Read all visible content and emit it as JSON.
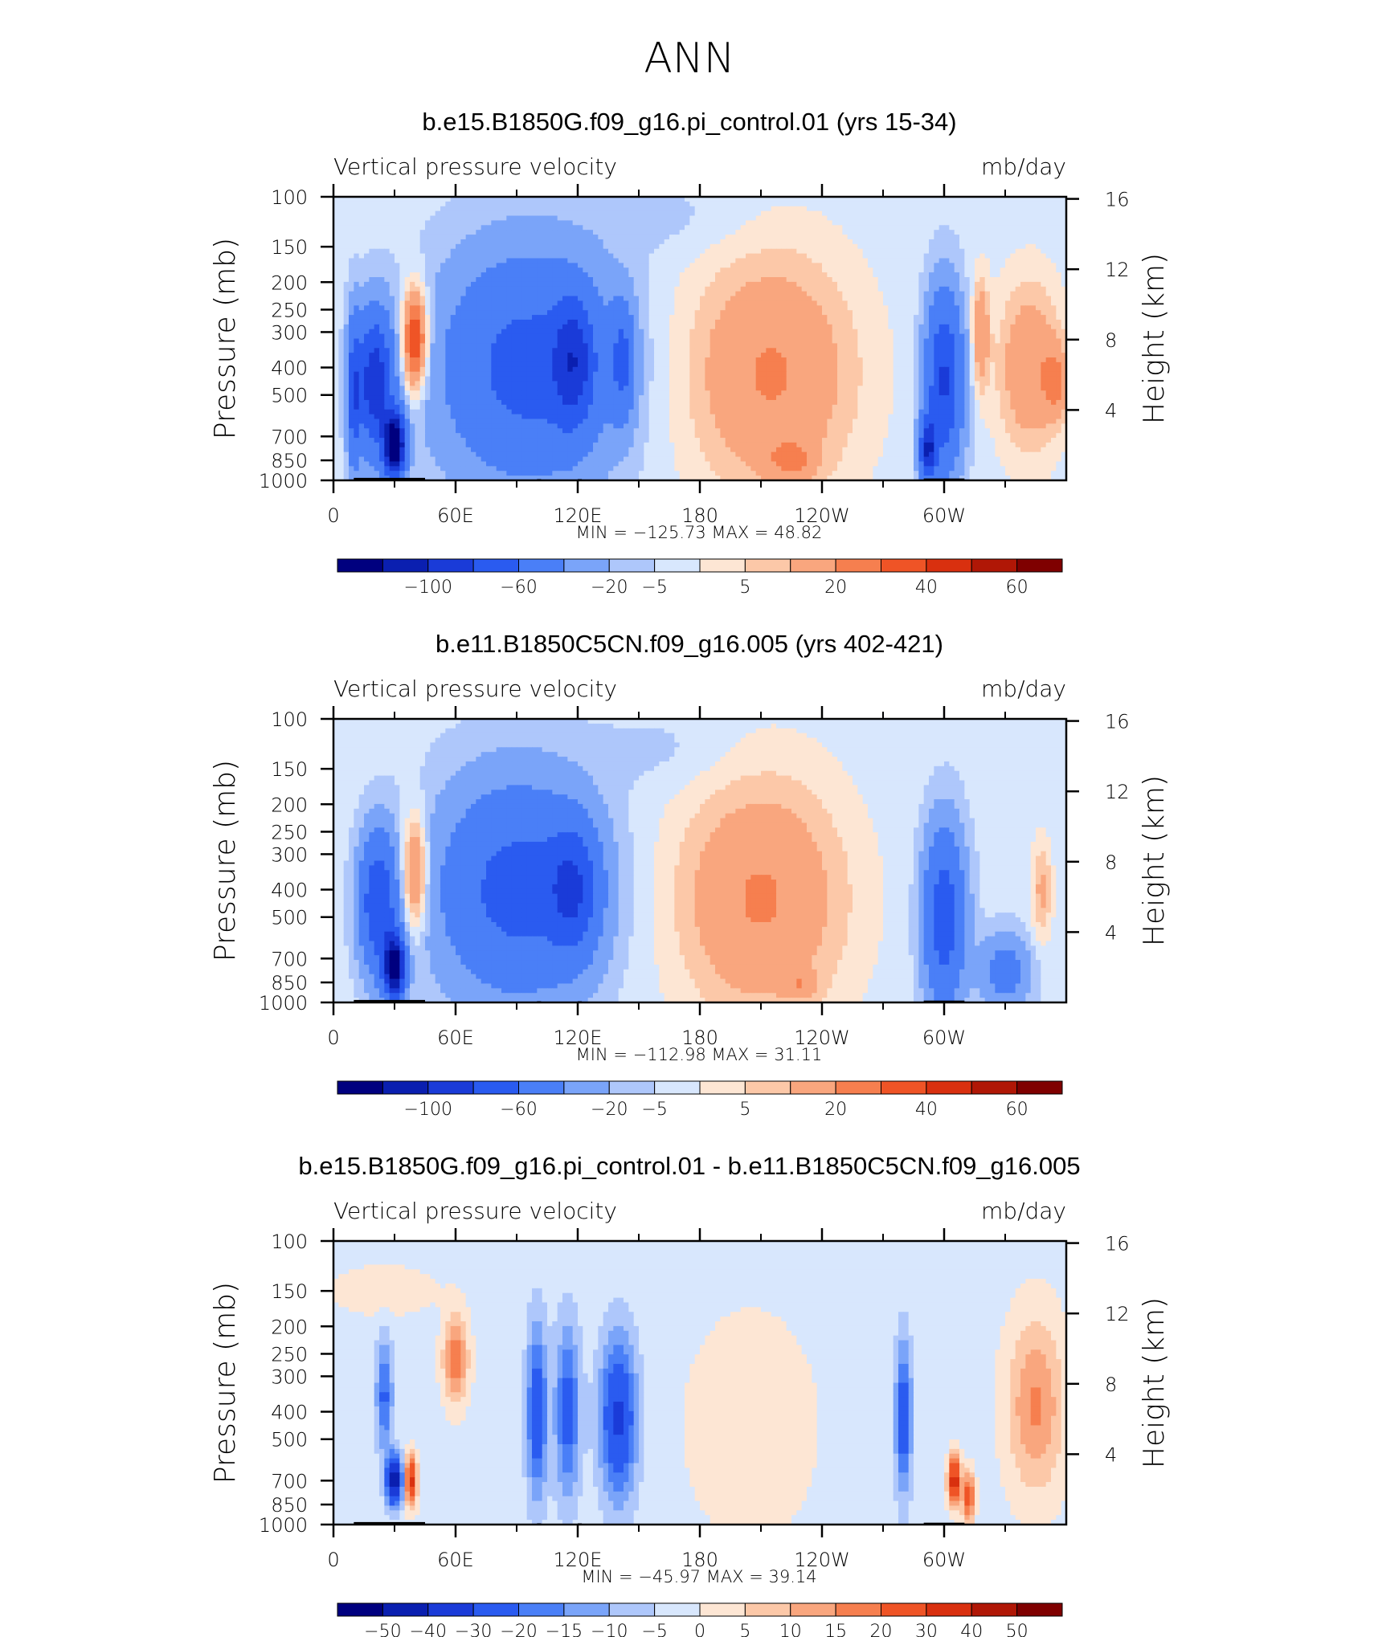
{
  "figure": {
    "title": "ANN"
  },
  "chart_data": [
    {
      "type": "heatmap",
      "title": "b.e15.B1850G.f09_g16.pi_control.01 (yrs 15-34)",
      "left_label": "Vertical pressure velocity",
      "right_label": "mb/day",
      "ylabel": "Pressure (mb)",
      "y2label": "Height (km)",
      "x_ticks": [
        "0",
        "60E",
        "120E",
        "180",
        "120W",
        "60W"
      ],
      "y_ticks": [
        "100",
        "150",
        "200",
        "250",
        "300",
        "400",
        "500",
        "700",
        "850",
        "1000"
      ],
      "y2_ticks": [
        "16",
        "12",
        "8",
        "4"
      ],
      "xlim": [
        0,
        360
      ],
      "ylim": [
        1000,
        100
      ],
      "y_scale": "log",
      "stats": "MIN = −125.73   MAX =   48.82",
      "colorbar_labels": [
        "−100",
        "−60",
        "−20",
        "−5",
        "5",
        "20",
        "40",
        "60"
      ],
      "features": [
        {
          "lon": 40,
          "p": 320,
          "lonw": 6,
          "pw": 0.4,
          "v": 48.82
        },
        {
          "lon": 20,
          "p": 450,
          "lonw": 9,
          "pw": 0.55,
          "v": -70
        },
        {
          "lon": 10,
          "p": 500,
          "lonw": 3,
          "pw": 0.6,
          "v": -40
        },
        {
          "lon": 30,
          "p": 750,
          "lonw": 5,
          "pw": 0.25,
          "v": -125.73
        },
        {
          "lon": 95,
          "p": 400,
          "lonw": 42,
          "pw": 0.9,
          "v": -45
        },
        {
          "lon": 118,
          "p": 380,
          "lonw": 10,
          "pw": 0.5,
          "v": -45
        },
        {
          "lon": 142,
          "p": 380,
          "lonw": 6,
          "pw": 0.45,
          "v": -35
        },
        {
          "lon": 215,
          "p": 420,
          "lonw": 42,
          "pw": 1.0,
          "v": 24
        },
        {
          "lon": 225,
          "p": 850,
          "lonw": 12,
          "pw": 0.15,
          "v": 15
        },
        {
          "lon": 300,
          "p": 450,
          "lonw": 9,
          "pw": 0.7,
          "v": -60
        },
        {
          "lon": 292,
          "p": 780,
          "lonw": 4,
          "pw": 0.25,
          "v": -70
        },
        {
          "lon": 318,
          "p": 300,
          "lonw": 4,
          "pw": 0.45,
          "v": 22
        },
        {
          "lon": 342,
          "p": 400,
          "lonw": 16,
          "pw": 0.7,
          "v": 22
        },
        {
          "lon": 355,
          "p": 450,
          "lonw": 6,
          "pw": 0.3,
          "v": 18
        },
        {
          "lon": 170,
          "p": 120,
          "lonw": 40,
          "pw": 0.3,
          "v": -4
        }
      ]
    },
    {
      "type": "heatmap",
      "title": "b.e11.B1850C5CN.f09_g16.005 (yrs 402-421)",
      "left_label": "Vertical pressure velocity",
      "right_label": "mb/day",
      "ylabel": "Pressure (mb)",
      "y2label": "Height (km)",
      "x_ticks": [
        "0",
        "60E",
        "120E",
        "180",
        "120W",
        "60W"
      ],
      "y_ticks": [
        "100",
        "150",
        "200",
        "250",
        "300",
        "400",
        "500",
        "700",
        "850",
        "1000"
      ],
      "y2_ticks": [
        "16",
        "12",
        "8",
        "4"
      ],
      "xlim": [
        0,
        360
      ],
      "ylim": [
        1000,
        100
      ],
      "y_scale": "log",
      "stats": "MIN = −112.98   MAX =   31.11",
      "colorbar_labels": [
        "−100",
        "−60",
        "−20",
        "−5",
        "5",
        "20",
        "40",
        "60"
      ],
      "features": [
        {
          "lon": 40,
          "p": 350,
          "lonw": 6,
          "pw": 0.45,
          "v": 31.11
        },
        {
          "lon": 22,
          "p": 450,
          "lonw": 9,
          "pw": 0.55,
          "v": -55
        },
        {
          "lon": 30,
          "p": 750,
          "lonw": 5,
          "pw": 0.25,
          "v": -112.98
        },
        {
          "lon": 90,
          "p": 400,
          "lonw": 38,
          "pw": 0.85,
          "v": -45
        },
        {
          "lon": 118,
          "p": 400,
          "lonw": 12,
          "pw": 0.5,
          "v": -40
        },
        {
          "lon": 210,
          "p": 430,
          "lonw": 42,
          "pw": 1.0,
          "v": 24
        },
        {
          "lon": 230,
          "p": 870,
          "lonw": 8,
          "pw": 0.1,
          "v": 12
        },
        {
          "lon": 300,
          "p": 500,
          "lonw": 10,
          "pw": 0.7,
          "v": -50
        },
        {
          "lon": 330,
          "p": 780,
          "lonw": 12,
          "pw": 0.3,
          "v": -25
        },
        {
          "lon": 348,
          "p": 400,
          "lonw": 5,
          "pw": 0.4,
          "v": 15
        },
        {
          "lon": 165,
          "p": 130,
          "lonw": 35,
          "pw": 0.3,
          "v": -4
        }
      ]
    },
    {
      "type": "heatmap",
      "title": "b.e15.B1850G.f09_g16.pi_control.01 - b.e11.B1850C5CN.f09_g16.005",
      "left_label": "Vertical pressure velocity",
      "right_label": "mb/day",
      "ylabel": "Pressure (mb)",
      "y2label": "Height (km)",
      "x_ticks": [
        "0",
        "60E",
        "120E",
        "180",
        "120W",
        "60W"
      ],
      "y_ticks": [
        "100",
        "150",
        "200",
        "250",
        "300",
        "400",
        "500",
        "700",
        "850",
        "1000"
      ],
      "y2_ticks": [
        "16",
        "12",
        "8",
        "4"
      ],
      "xlim": [
        0,
        360
      ],
      "ylim": [
        1000,
        100
      ],
      "y_scale": "log",
      "stats": "MIN = −45.97   MAX =   39.14",
      "colorbar_labels": [
        "−50",
        "−40",
        "−30",
        "−20",
        "−15",
        "−10",
        "−5",
        "0",
        "5",
        "10",
        "15",
        "20",
        "30",
        "40",
        "50"
      ],
      "features": [
        {
          "lon": 60,
          "p": 260,
          "lonw": 6,
          "pw": 0.35,
          "v": 22
        },
        {
          "lon": 25,
          "p": 350,
          "lonw": 4,
          "pw": 0.45,
          "v": -20
        },
        {
          "lon": 30,
          "p": 700,
          "lonw": 4,
          "pw": 0.2,
          "v": -45.97
        },
        {
          "lon": 38,
          "p": 700,
          "lonw": 3,
          "pw": 0.2,
          "v": 36
        },
        {
          "lon": 100,
          "p": 400,
          "lonw": 5,
          "pw": 0.7,
          "v": -25
        },
        {
          "lon": 115,
          "p": 400,
          "lonw": 6,
          "pw": 0.7,
          "v": -22
        },
        {
          "lon": 140,
          "p": 420,
          "lonw": 9,
          "pw": 0.65,
          "v": -30
        },
        {
          "lon": 205,
          "p": 450,
          "lonw": 35,
          "pw": 1.0,
          "v": 5
        },
        {
          "lon": 280,
          "p": 420,
          "lonw": 4,
          "pw": 0.6,
          "v": -25
        },
        {
          "lon": 305,
          "p": 700,
          "lonw": 3,
          "pw": 0.2,
          "v": 39.14
        },
        {
          "lon": 312,
          "p": 800,
          "lonw": 3,
          "pw": 0.2,
          "v": 28
        },
        {
          "lon": 345,
          "p": 380,
          "lonw": 14,
          "pw": 0.7,
          "v": 18
        },
        {
          "lon": 25,
          "p": 150,
          "lonw": 25,
          "pw": 0.2,
          "v": 6
        }
      ]
    }
  ]
}
